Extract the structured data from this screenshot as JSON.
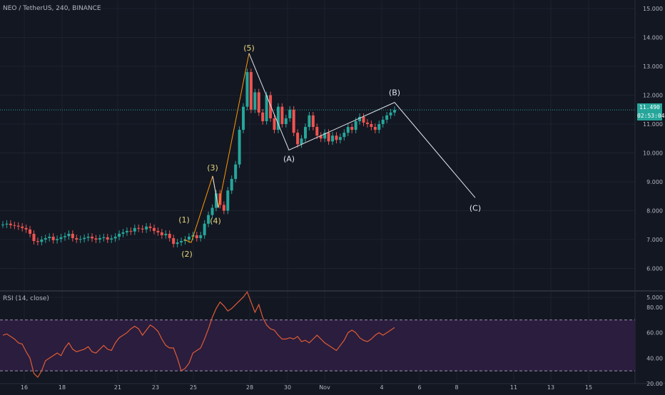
{
  "symbol_legend": "NEO / TetherUS, 240, BINANCE",
  "rsi_legend": "RSI (14, close)",
  "price_tag": "11.490",
  "countdown_tag": "02:53:04",
  "colors": {
    "background": "#131722",
    "grid": "#1e222d",
    "up": "#26a69a",
    "down": "#ef5350",
    "wave_line": "#e1e4ea",
    "wave_label": "#e6d87a",
    "corrective_label": "#e1e4ea",
    "impulse_overlay": "#ff9800",
    "rsi_line": "#e05b36",
    "rsi_band": "#2a1d3d",
    "rsi_band_border": "#9a8fae",
    "current_price_line": "#26a69a"
  },
  "chart_data": [
    {
      "type": "candlestick",
      "name": "price",
      "ylim": [
        5.0,
        15.0
      ],
      "y_ticks": [
        "15.000",
        "14.000",
        "13.000",
        "12.000",
        "11.000",
        "10.000",
        "9.000",
        "8.000",
        "7.000",
        "6.000",
        "5.000"
      ],
      "x_ticks": [
        "16",
        "18",
        "21",
        "23",
        "25",
        "28",
        "30",
        "Nov",
        "4",
        "6",
        "8",
        "11",
        "13",
        "15"
      ],
      "current_price": 11.49,
      "grid": true,
      "series_close": [
        7.52,
        7.55,
        7.5,
        7.48,
        7.45,
        7.4,
        7.35,
        7.2,
        6.95,
        6.92,
        7.0,
        7.05,
        7.1,
        6.98,
        7.02,
        7.08,
        7.12,
        7.2,
        7.05,
        7.0,
        7.02,
        7.06,
        7.1,
        7.04,
        7.0,
        7.05,
        7.08,
        7.0,
        7.04,
        7.1,
        7.2,
        7.25,
        7.3,
        7.28,
        7.4,
        7.38,
        7.35,
        7.45,
        7.4,
        7.3,
        7.25,
        7.15,
        7.2,
        7.05,
        6.85,
        6.9,
        6.95,
        7.0,
        7.1,
        7.15,
        7.05,
        7.15,
        7.55,
        7.85,
        8.1,
        8.6,
        8.2,
        8.0,
        8.7,
        9.1,
        9.6,
        10.8,
        11.6,
        12.8,
        11.5,
        12.1,
        11.4,
        11.1,
        12.0,
        11.2,
        10.8,
        11.6,
        11.0,
        11.2,
        11.5,
        10.7,
        10.3,
        10.5,
        10.9,
        11.3,
        10.9,
        10.6,
        10.5,
        10.7,
        10.4,
        10.6,
        10.45,
        10.55,
        10.7,
        10.9,
        10.8,
        11.1,
        11.25,
        11.05,
        11.0,
        10.9,
        10.8,
        11.0,
        11.15,
        11.3,
        11.4,
        11.49
      ],
      "wave_labels": [
        {
          "text": "(1)",
          "x": "24.5",
          "price": 7.35
        },
        {
          "text": "(2)",
          "x": "24.6",
          "price": 6.8
        },
        {
          "text": "(3)",
          "x": "26.1",
          "price": 9.2
        },
        {
          "text": "(4)",
          "x": "26.2",
          "price": 7.9
        },
        {
          "text": "(5)",
          "x": "27.9",
          "price": 13.4
        },
        {
          "text": "(A)",
          "x": "30.0",
          "price": 10.1
        },
        {
          "text": "(B)",
          "x": "Nov 4.9",
          "price": 11.75
        },
        {
          "text": "(C)",
          "x": "Nov 9",
          "price": 8.4
        }
      ],
      "wave_points": [
        {
          "x": "24.5",
          "y": 7.0
        },
        {
          "x": "24.7",
          "y": 6.9
        },
        {
          "x": "26.1",
          "y": 9.2
        },
        {
          "x": "26.3",
          "y": 8.1
        },
        {
          "x": "27.9",
          "y": 13.45
        },
        {
          "x": "30.0",
          "y": 10.1
        },
        {
          "x": "Nov 4.9",
          "y": 11.75
        },
        {
          "x": "Nov 9",
          "y": 8.45
        }
      ]
    },
    {
      "type": "line",
      "name": "RSI (14, close)",
      "ylim": [
        20,
        90
      ],
      "y_ticks": [
        "80.00",
        "60.00",
        "40.00",
        "20.00"
      ],
      "band": [
        30,
        70
      ],
      "values": [
        58,
        59,
        57,
        55,
        52,
        51,
        45,
        40,
        28,
        25,
        30,
        38,
        40,
        42,
        44,
        42,
        48,
        52,
        47,
        45,
        46,
        47,
        49,
        45,
        44,
        47,
        50,
        47,
        46,
        52,
        56,
        58,
        60,
        63,
        65,
        63,
        58,
        62,
        66,
        64,
        61,
        55,
        50,
        48,
        48,
        40,
        30,
        32,
        36,
        44,
        46,
        48,
        55,
        63,
        72,
        79,
        84,
        81,
        77,
        79,
        82,
        85,
        88,
        92,
        84,
        76,
        82,
        72,
        66,
        63,
        62,
        58,
        55,
        55,
        56,
        55,
        57,
        53,
        54,
        52,
        55,
        58,
        55,
        52,
        50,
        48,
        46,
        50,
        54,
        60,
        62,
        60,
        56,
        54,
        53,
        55,
        58,
        60,
        58,
        60,
        62,
        64
      ]
    }
  ]
}
